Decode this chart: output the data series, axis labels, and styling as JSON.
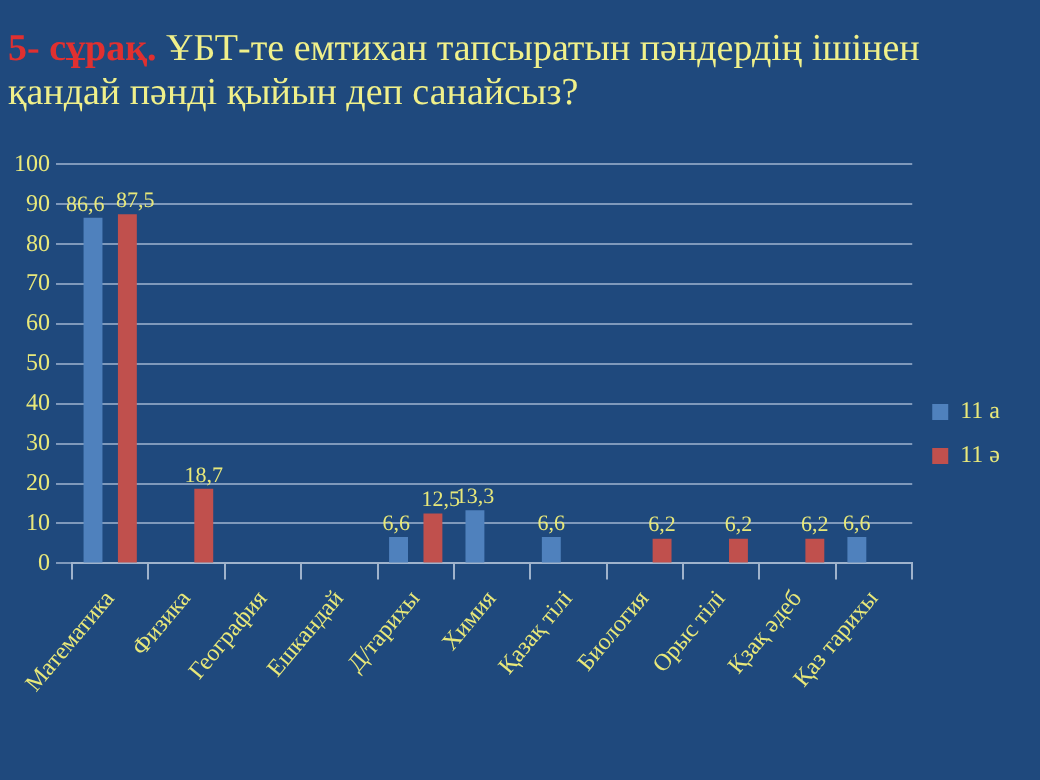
{
  "chart_data": {
    "type": "bar",
    "title": "5- сұрақ.",
    "subtitle": "ҰБТ-те емтихан тапсыратын пәндердің ішінен қандай пәнді қыйын деп санайсыз?",
    "categories": [
      "Математика",
      "Физика",
      "География",
      "Ешкандай",
      "Д/тарихы",
      "Химия",
      "Қазақ тілі",
      "Биология",
      "Орыс тілі",
      "Қзақ әдеб",
      "Қаз тарихы"
    ],
    "series": [
      {
        "name": "11 а",
        "color": "#4f81bd",
        "values": [
          86.6,
          null,
          null,
          null,
          6.6,
          13.3,
          6.6,
          null,
          null,
          null,
          6.6
        ],
        "value_labels": [
          "86,6",
          null,
          null,
          null,
          "6,6",
          "13,3",
          "6,6",
          null,
          null,
          null,
          "6,6"
        ]
      },
      {
        "name": "11 ә",
        "color": "#c0504d",
        "values": [
          87.5,
          18.7,
          null,
          null,
          12.5,
          null,
          null,
          6.2,
          6.2,
          6.2,
          null
        ],
        "value_labels": [
          "87,5",
          "18,7",
          null,
          null,
          "12,5",
          null,
          null,
          "6,2",
          "6,2",
          "6,2",
          null
        ]
      }
    ],
    "ylim": [
      0,
      100
    ],
    "yticks": [
      0,
      10,
      20,
      30,
      40,
      50,
      60,
      70,
      80,
      90,
      100
    ],
    "grid": "y",
    "legend": "right"
  }
}
